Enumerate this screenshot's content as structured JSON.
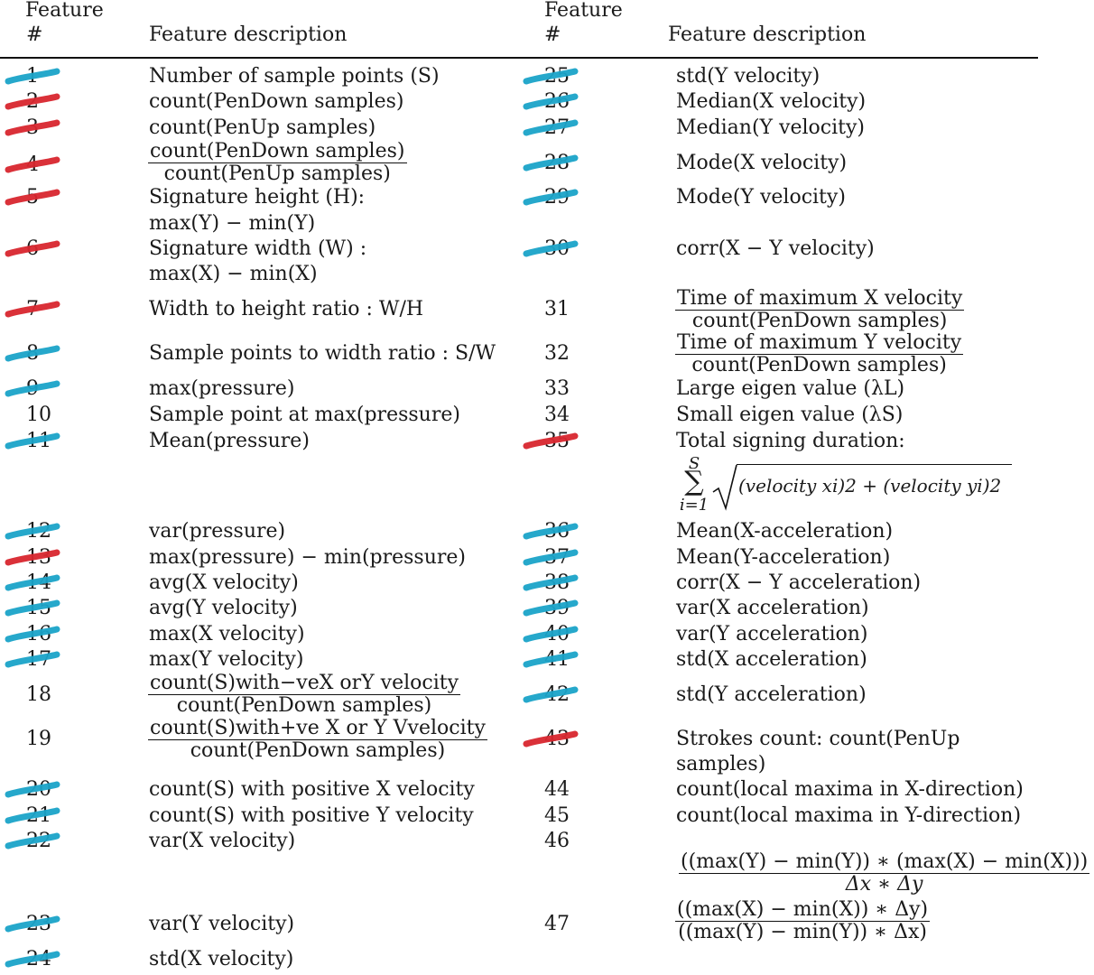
{
  "header": {
    "feature_num_label": "Feature",
    "hash_label": "#",
    "desc_label": "Feature description"
  },
  "rows_left": [
    {
      "num": "1",
      "desc": "Number of sample points (S)",
      "mark": "blue"
    },
    {
      "num": "2",
      "desc": "count(PenDown samples)",
      "mark": "red"
    },
    {
      "num": "3",
      "desc": "count(PenUp samples)",
      "mark": "red"
    },
    {
      "num": "4",
      "desc_num": "count(PenDown samples)",
      "desc_den": "count(PenUp samples)",
      "mark": "red"
    },
    {
      "num": "5",
      "desc": "Signature height (H):",
      "desc2": "max(Y) − min(Y)",
      "mark": "red"
    },
    {
      "num": "6",
      "desc": "Signature width (W) :",
      "desc2": "max(X) − min(X)",
      "mark": "red"
    },
    {
      "num": "7",
      "desc": "Width to height ratio : W/H",
      "mark": "red"
    },
    {
      "num": "8",
      "desc": "Sample points to width ratio : S/W",
      "mark": "blue"
    },
    {
      "num": "9",
      "desc": "max(pressure)",
      "mark": "blue"
    },
    {
      "num": "10",
      "desc": "Sample point at max(pressure)",
      "mark": ""
    },
    {
      "num": "11",
      "desc": "Mean(pressure)",
      "mark": "blue"
    },
    {
      "num": "12",
      "desc": "var(pressure)",
      "mark": "blue"
    },
    {
      "num": "13",
      "desc": "max(pressure) − min(pressure)",
      "mark": "red"
    },
    {
      "num": "14",
      "desc": "avg(X velocity)",
      "mark": "blue"
    },
    {
      "num": "15",
      "desc": "avg(Y velocity)",
      "mark": "blue"
    },
    {
      "num": "16",
      "desc": "max(X velocity)",
      "mark": "blue"
    },
    {
      "num": "17",
      "desc": "max(Y velocity)",
      "mark": "blue"
    },
    {
      "num": "18",
      "desc_num": "count(S)with−veX orY velocity",
      "desc_den": "count(PenDown samples)",
      "mark": ""
    },
    {
      "num": "19",
      "desc_num": "count(S)with+ve X or Y Vvelocity",
      "desc_den": "count(PenDown samples)",
      "mark": ""
    },
    {
      "num": "20",
      "desc": "count(S) with positive X velocity",
      "mark": "blue"
    },
    {
      "num": "21",
      "desc": "count(S) with positive Y velocity",
      "mark": "blue"
    },
    {
      "num": "22",
      "desc": "var(X velocity)",
      "mark": "blue"
    },
    {
      "num": "23",
      "desc": "var(Y velocity)",
      "mark": "blue"
    },
    {
      "num": "24",
      "desc": "std(X velocity)",
      "mark": "blue"
    }
  ],
  "rows_right": [
    {
      "num": "25",
      "desc": "std(Y velocity)",
      "mark": "blue"
    },
    {
      "num": "26",
      "desc": "Median(X velocity)",
      "mark": "blue"
    },
    {
      "num": "27",
      "desc": "Median(Y velocity)",
      "mark": "blue"
    },
    {
      "num": "28",
      "desc": "Mode(X velocity)",
      "mark": "blue"
    },
    {
      "num": "29",
      "desc": "Mode(Y velocity)",
      "mark": "blue"
    },
    {
      "num": "30",
      "desc": "corr(X − Y velocity)",
      "mark": "blue"
    },
    {
      "num": "31",
      "desc_num": "Time of maximum X velocity",
      "desc_den": "count(PenDown samples)",
      "mark": ""
    },
    {
      "num": "32",
      "desc_num": "Time of maximum Y velocity",
      "desc_den": "count(PenDown samples)",
      "mark": ""
    },
    {
      "num": "33",
      "desc": "Large eigen value (λL)",
      "mark": ""
    },
    {
      "num": "34",
      "desc": "Small eigen value (λS)",
      "mark": ""
    },
    {
      "num": "35",
      "desc": "Total signing duration:",
      "formula_top": "S",
      "formula_sigma": "∑",
      "formula_bottom": "i=1",
      "formula_body": "(velocity xi)2 + (velocity yi)2",
      "mark": "red"
    },
    {
      "num": "36",
      "desc": "Mean(X-acceleration)",
      "mark": "blue"
    },
    {
      "num": "37",
      "desc": "Mean(Y-acceleration)",
      "mark": "blue"
    },
    {
      "num": "38",
      "desc": "corr(X − Y acceleration)",
      "mark": "blue"
    },
    {
      "num": "39",
      "desc": "var(X acceleration)",
      "mark": "blue"
    },
    {
      "num": "40",
      "desc": "var(Y acceleration)",
      "mark": "blue"
    },
    {
      "num": "41",
      "desc": "std(X acceleration)",
      "mark": "blue"
    },
    {
      "num": "42",
      "desc": "std(Y acceleration)",
      "mark": "blue"
    },
    {
      "num": "43",
      "desc": "Strokes count: count(PenUp",
      "desc2": "samples)",
      "mark": "red"
    },
    {
      "num": "44",
      "desc": "count(local maxima in X-direction)",
      "mark": ""
    },
    {
      "num": "45",
      "desc": "count(local maxima in Y-direction)",
      "mark": ""
    },
    {
      "num": "46",
      "desc_num": "((max(Y) − min(Y)) ∗ (max(X) − min(X)))",
      "desc_den": "Δx ∗ Δy",
      "mark": ""
    },
    {
      "num": "47",
      "desc_num": "((max(X) − min(X)) ∗ Δy)",
      "desc_den": "((max(Y) − min(Y)) ∗ Δx)",
      "mark": ""
    }
  ],
  "mark_colors": {
    "blue": "#1aa3c8",
    "red": "#d8262e"
  }
}
